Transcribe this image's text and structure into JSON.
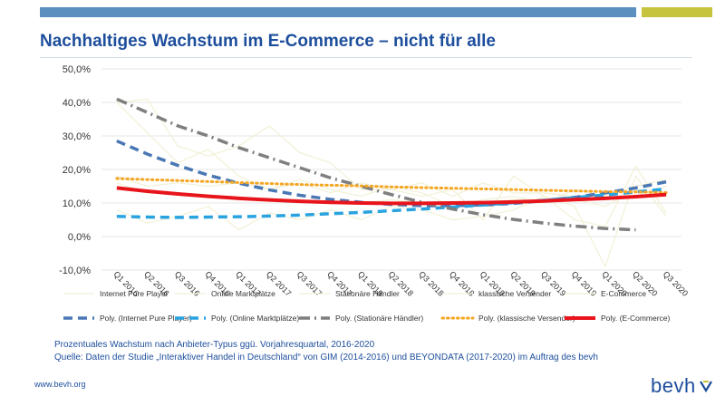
{
  "header": {
    "title": "Nachhaltiges Wachstum im E-Commerce – nicht für alle"
  },
  "colors": {
    "band_blue": "#5b8fbf",
    "band_lime": "#c6c43c",
    "title": "#1d4e9c"
  },
  "chart_data": {
    "type": "line",
    "title": "",
    "xlabel": "",
    "ylabel": "",
    "ylim": [
      -10,
      50
    ],
    "yticks": [
      "50,0%",
      "40,0%",
      "30,0%",
      "20,0%",
      "10,0%",
      "0,0%",
      "-10,0%"
    ],
    "grid": true,
    "legend_position": "bottom",
    "categories": [
      "Q1 2016",
      "Q2 2016",
      "Q3 2016",
      "Q4 2016",
      "Q1 2017",
      "Q2 2017",
      "Q3 2017",
      "Q4 2017",
      "Q1 2018",
      "Q2 2018",
      "Q3 2018",
      "Q4 2018",
      "Q1 2019",
      "Q2 2019",
      "Q3 2019",
      "Q4 2019",
      "Q1 2020",
      "Q2 2020",
      "Q3 2020"
    ],
    "series": [
      {
        "name": "Internet Pure Player",
        "color": "#f2f0d6",
        "style": "thin",
        "values": [
          40,
          31,
          22,
          26,
          18,
          14,
          17,
          14,
          12,
          15,
          13,
          9,
          11,
          12,
          10,
          14,
          12,
          15,
          17
        ]
      },
      {
        "name": "Online Marktplätze",
        "color": "#f2f0d6",
        "style": "thin",
        "values": [
          8,
          4,
          6,
          9,
          2,
          7,
          5,
          8,
          5,
          9,
          8,
          5,
          6,
          8,
          12,
          9,
          -9,
          18,
          6
        ]
      },
      {
        "name": "Stationäre Händler",
        "color": "#f2f0d6",
        "style": "thin",
        "values": [
          40,
          41,
          27,
          24,
          27,
          33,
          25,
          22,
          14,
          14,
          12,
          14,
          5,
          18,
          12,
          5,
          3,
          21,
          7
        ]
      },
      {
        "name": "klassische Versender",
        "color": "#f2f0d6",
        "style": "thin",
        "values": [
          18,
          15,
          16,
          15,
          16,
          14,
          16,
          13,
          16,
          14,
          16,
          12,
          16,
          13,
          13,
          12,
          11,
          12,
          15
        ]
      },
      {
        "name": "E-Commerce",
        "color": "#f2f0d6",
        "style": "thin",
        "values": [
          16,
          13,
          13,
          12,
          11,
          11,
          11,
          10,
          10,
          11,
          10,
          9,
          10,
          11,
          11,
          11,
          9,
          14,
          13
        ]
      },
      {
        "name": "Poly. (Internet Pure Player)",
        "color": "#4a78b5",
        "style": "dash",
        "values": [
          28.5,
          24.6,
          21.2,
          18.3,
          15.9,
          13.9,
          12.3,
          11.1,
          10.2,
          9.6,
          9.2,
          9.2,
          9.4,
          9.9,
          10.7,
          11.7,
          13.0,
          14.5,
          16.3
        ]
      },
      {
        "name": "Poly. (Online Marktplätze)",
        "color": "#29a3e0",
        "style": "dash",
        "values": [
          6.0,
          5.8,
          5.7,
          5.8,
          5.9,
          6.1,
          6.4,
          6.8,
          7.2,
          7.7,
          8.2,
          8.8,
          9.4,
          10.1,
          10.8,
          11.6,
          12.4,
          13.3,
          14.2
        ]
      },
      {
        "name": "Poly. (Stationäre Händler)",
        "color": "#7f7f7f",
        "style": "dashdot",
        "values": [
          41,
          37,
          33,
          30,
          26.5,
          23.5,
          20.5,
          17.5,
          15,
          12.5,
          10.2,
          8.2,
          6.5,
          5.1,
          4.0,
          3.1,
          2.4,
          2.0,
          null
        ]
      },
      {
        "name": "Poly. (klassische Versender)",
        "color": "#f5a623",
        "style": "dot",
        "values": [
          17.3,
          17.0,
          16.7,
          16.4,
          16.1,
          15.8,
          15.5,
          15.3,
          15.1,
          14.8,
          14.6,
          14.4,
          14.2,
          14.0,
          13.8,
          13.6,
          13.4,
          13.3,
          13.1
        ]
      },
      {
        "name": "Poly. (E-Commerce)",
        "color": "#e8141b",
        "style": "solid",
        "values": [
          14.5,
          13.5,
          12.7,
          12.0,
          11.4,
          10.9,
          10.5,
          10.2,
          10.0,
          9.9,
          9.9,
          10.0,
          10.1,
          10.3,
          10.6,
          11.0,
          11.4,
          11.9,
          12.5
        ]
      }
    ]
  },
  "notes": {
    "line1": "Prozentuales Wachstum nach Anbieter-Typus ggü. Vorjahresquartal, 2016-2020",
    "line2": "Quelle: Daten der Studie „Interaktiver Handel in Deutschland“ von GIM (2014-2016) und BEYONDATA (2017-2020) im Auftrag des bevh"
  },
  "footer": {
    "url": "www.bevh.org",
    "logo_text": "bevh"
  }
}
